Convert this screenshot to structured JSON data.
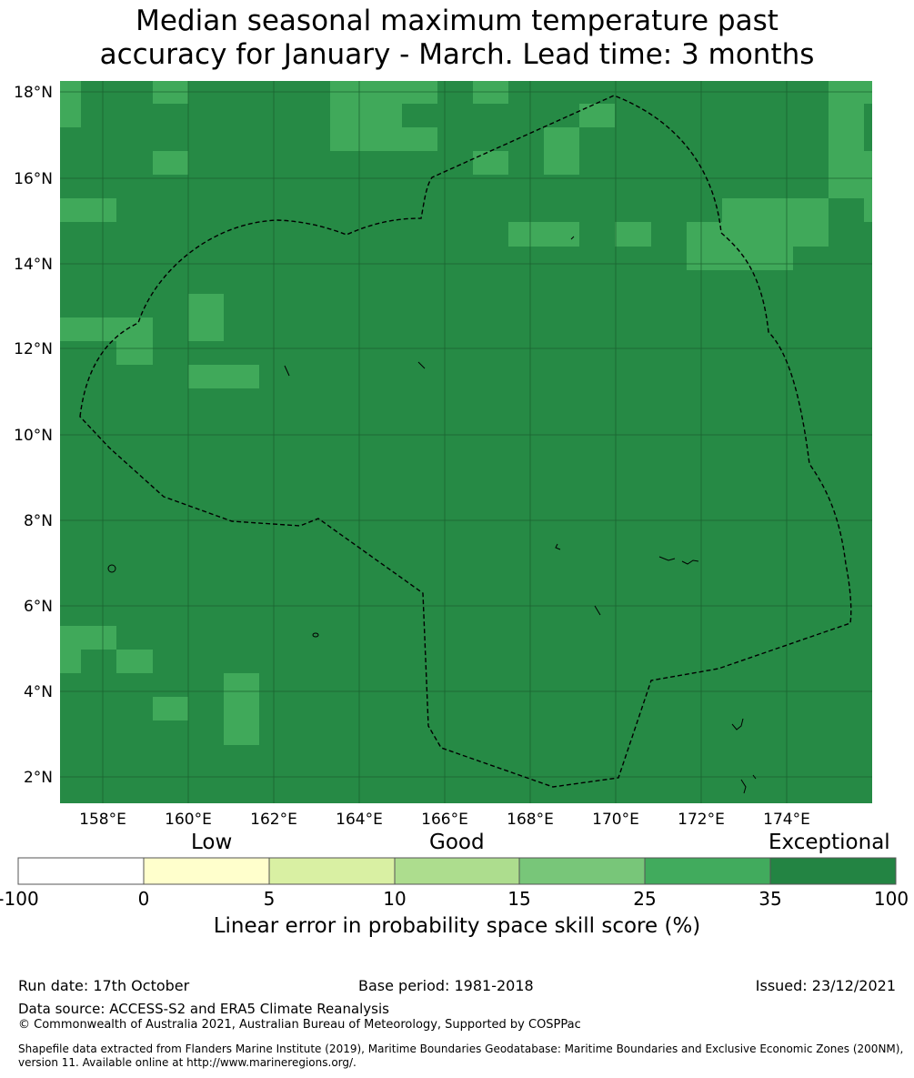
{
  "title": {
    "line1": "Median seasonal maximum temperature past",
    "line2": "accuracy for January - March. Lead time: 3 months"
  },
  "map": {
    "lat_labels": [
      "18°N",
      "16°N",
      "14°N",
      "12°N",
      "10°N",
      "8°N",
      "6°N",
      "4°N",
      "2°N"
    ],
    "lon_labels": [
      "158°E",
      "160°E",
      "162°E",
      "164°E",
      "166°E",
      "168°E",
      "170°E",
      "172°E",
      "174°E"
    ],
    "base_color": "#268a45",
    "light_color": "#40a95a",
    "gridline_color": "#1a5e2e"
  },
  "colorbar": {
    "categories": [
      "Low",
      "Good",
      "Exceptional"
    ],
    "ticks": [
      "-100",
      "0",
      "5",
      "10",
      "15",
      "25",
      "35",
      "100"
    ],
    "colors": [
      "#ffffff",
      "#ffffcc",
      "#d9f0a3",
      "#addd8e",
      "#78c679",
      "#41ab5d",
      "#238443"
    ],
    "label": "Linear error in probability space skill score (%)"
  },
  "footer": {
    "run_date": "Run date: 17th October",
    "base_period": "Base period: 1981-2018",
    "issued": "Issued: 23/12/2021",
    "data_source": "Data source: ACCESS-S2 and ERA5 Climate Reanalysis",
    "copyright": "© Commonwealth of Australia 2021, Australian Bureau of Meteorology, Supported by COSPPac",
    "shapefile": "Shapefile data extracted from Flanders Marine Institute (2019), Maritime Boundaries Geodatabase: Maritime Boundaries and Exclusive Economic Zones (200NM), version 11. Available online at http://www.marineregions.org/."
  }
}
